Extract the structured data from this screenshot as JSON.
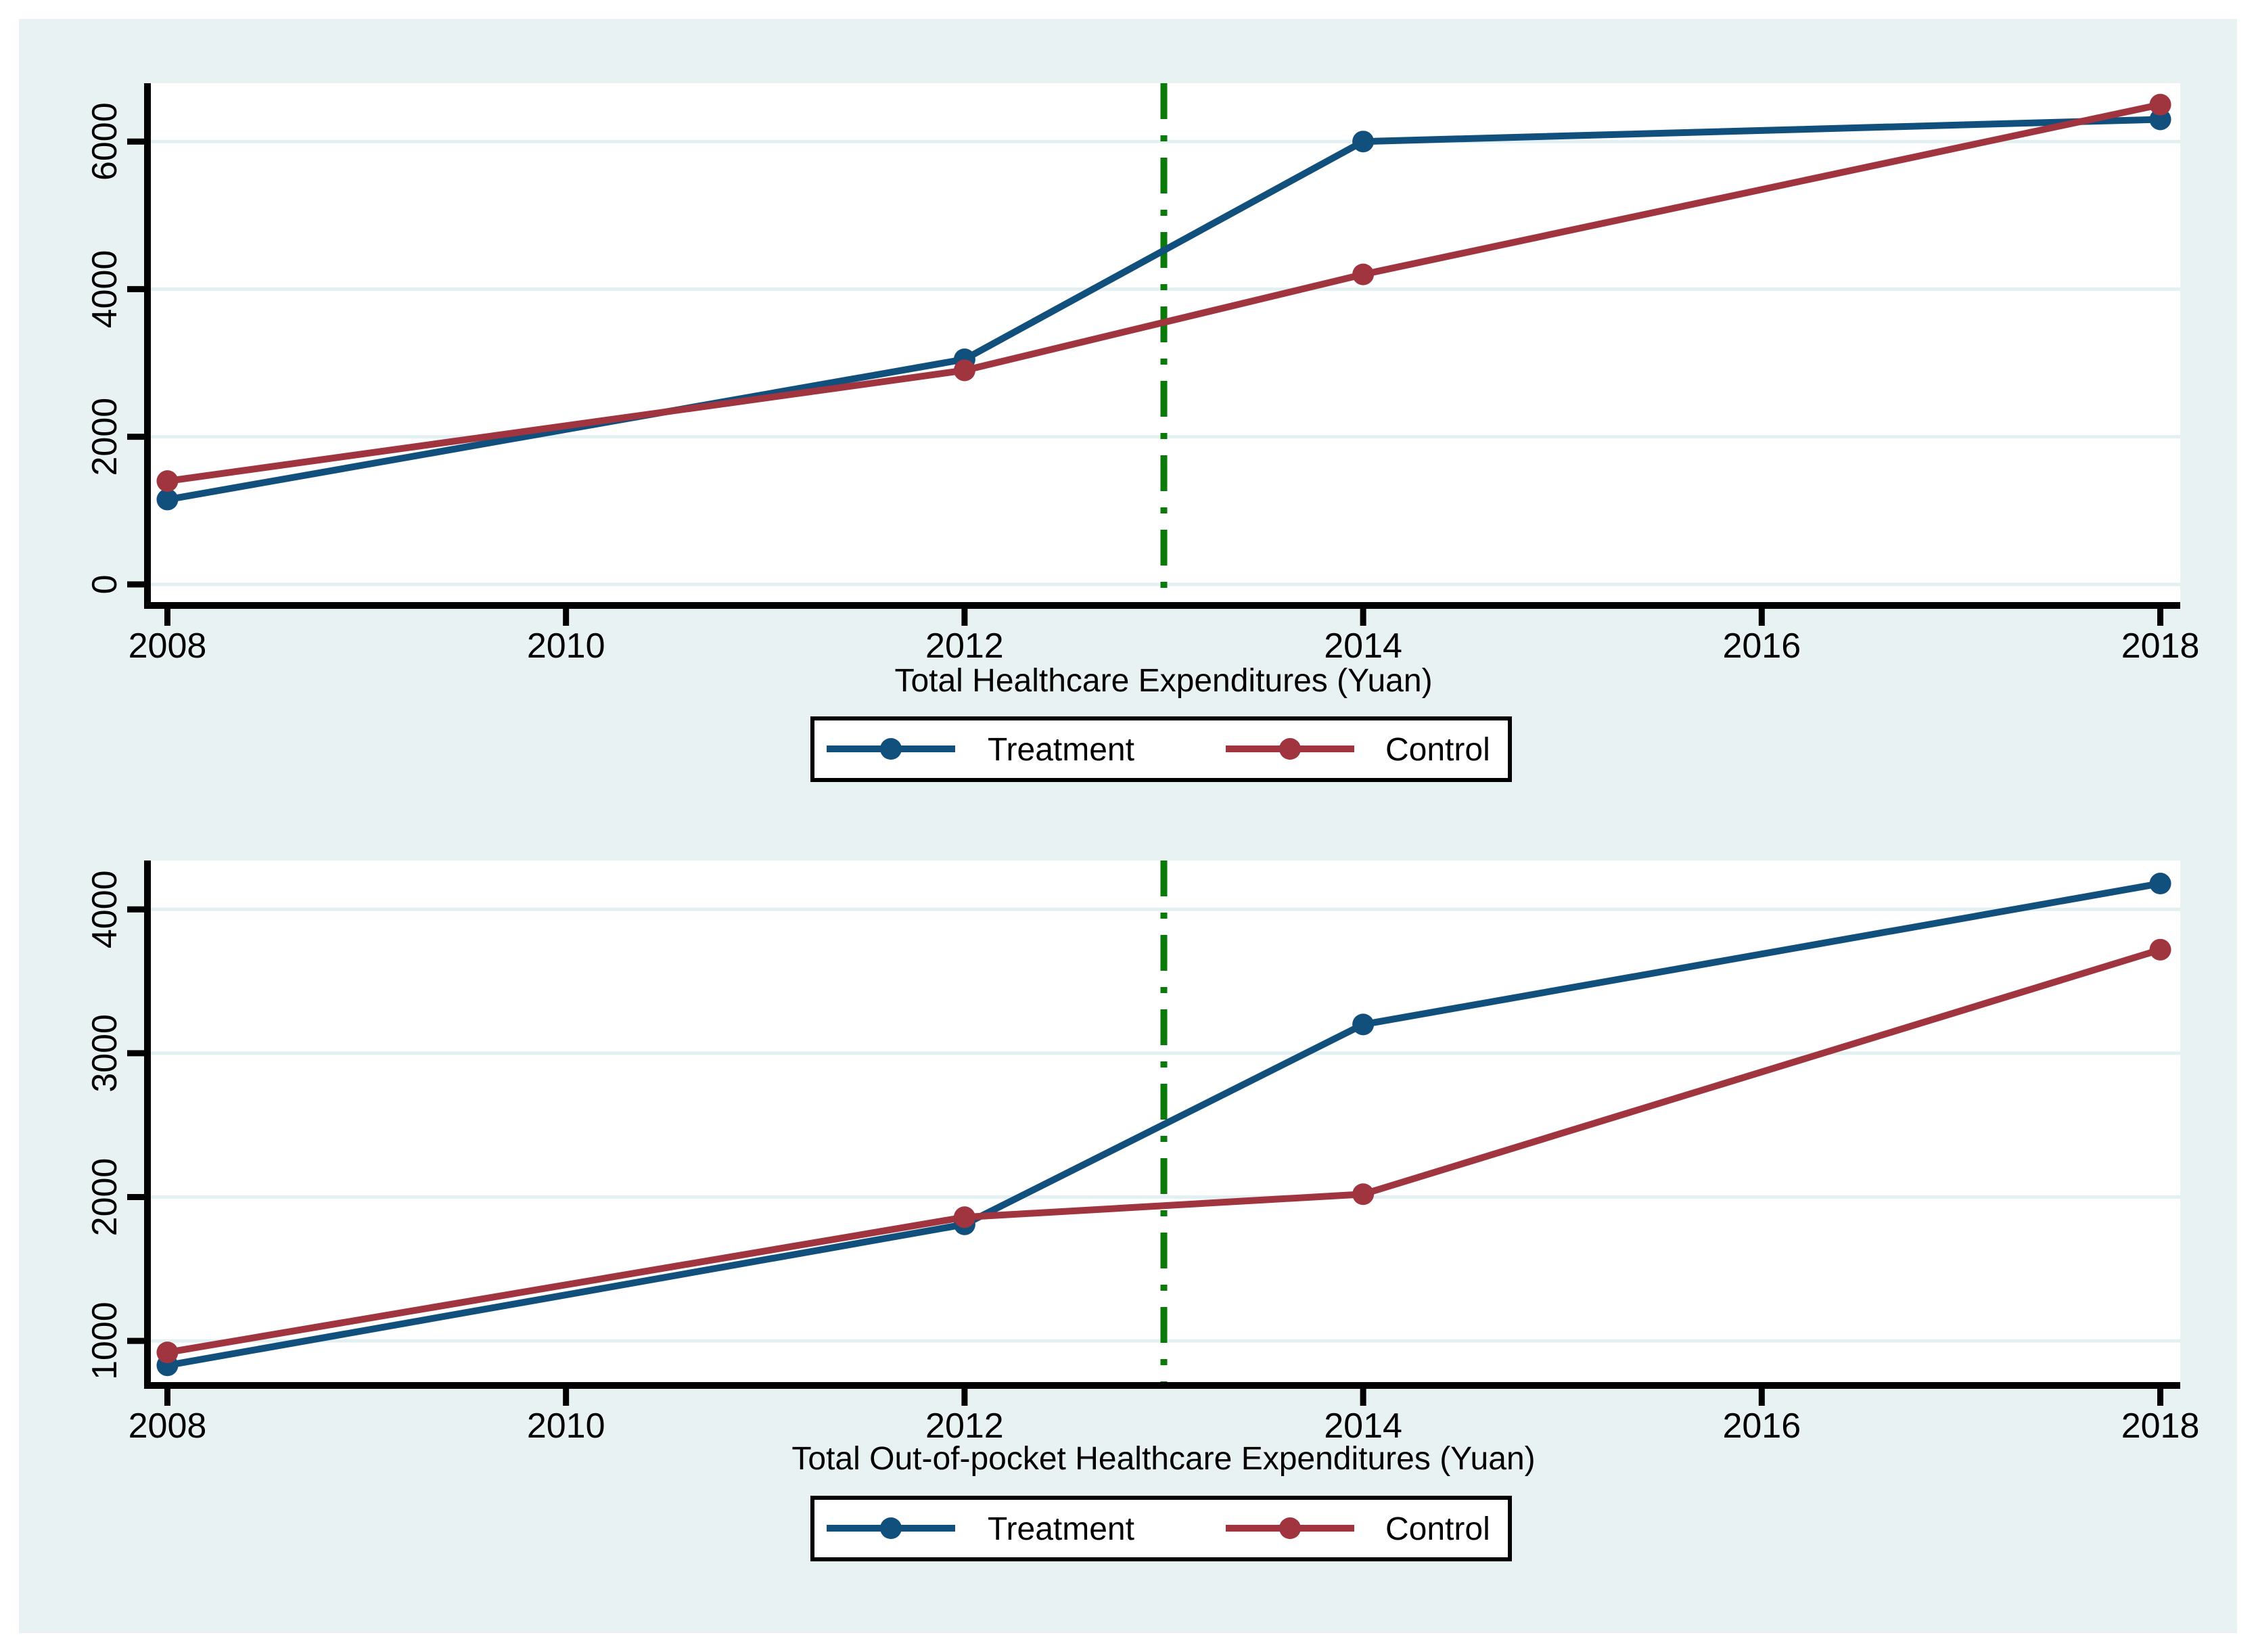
{
  "colors": {
    "page_background": "#ffffff",
    "graph_region": "#e9f2f3",
    "plot_region": "#ffffff",
    "gridline": "#e2f0f2",
    "axis": "#000000",
    "text": "#000000",
    "treatment": "#11507c",
    "control": "#a03540",
    "policy_line": "#0a7a0a",
    "legend_border": "#000000",
    "legend_fill": "#ffffff"
  },
  "chart_data": [
    {
      "type": "line",
      "xlabel": "Total Healthcare Expenditures (Yuan)",
      "x": [
        2008,
        2012,
        2014,
        2018
      ],
      "series": [
        {
          "name": "Treatment",
          "color": "#11507c",
          "values": [
            1150,
            3050,
            6000,
            6300
          ]
        },
        {
          "name": "Control",
          "color": "#a03540",
          "values": [
            1400,
            2900,
            4200,
            6500
          ]
        }
      ],
      "x_ticks": [
        2008,
        2010,
        2012,
        2014,
        2016,
        2018
      ],
      "y_ticks": [
        0,
        2000,
        4000,
        6000
      ],
      "xlim": [
        2007.9,
        2018.1
      ],
      "ylim": [
        -285,
        6790
      ],
      "vline_x": 2013,
      "grid": true,
      "legend_position": "bottom-center",
      "legend": [
        "Treatment",
        "Control"
      ]
    },
    {
      "type": "line",
      "xlabel": "Total Out-of-pocket Healthcare Expenditures (Yuan)",
      "x": [
        2008,
        2012,
        2014,
        2018
      ],
      "series": [
        {
          "name": "Treatment",
          "color": "#11507c",
          "values": [
            830,
            1810,
            3200,
            4180
          ]
        },
        {
          "name": "Control",
          "color": "#a03540",
          "values": [
            920,
            1860,
            2020,
            3720
          ]
        }
      ],
      "x_ticks": [
        2008,
        2010,
        2012,
        2014,
        2016,
        2018
      ],
      "y_ticks": [
        1000,
        2000,
        3000,
        4000
      ],
      "xlim": [
        2007.9,
        2018.1
      ],
      "ylim": [
        690,
        4340
      ],
      "vline_x": 2013,
      "grid": true,
      "legend_position": "bottom-center",
      "legend": [
        "Treatment",
        "Control"
      ]
    }
  ]
}
